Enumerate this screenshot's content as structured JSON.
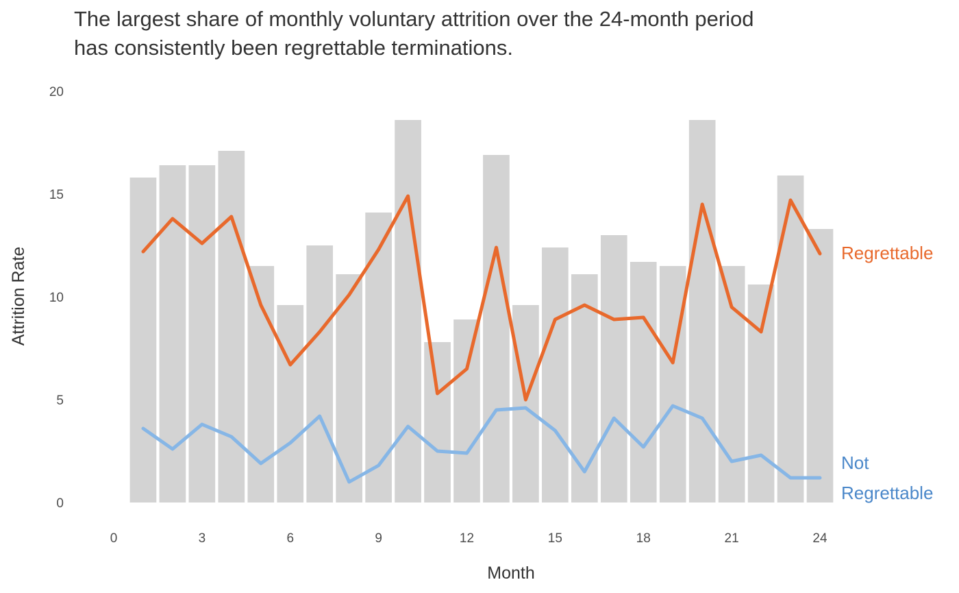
{
  "chart_data": {
    "type": "bar",
    "title_lines": [
      "The largest share of monthly voluntary attrition over the 24-month period",
      "has consistently been regrettable terminations."
    ],
    "xlabel": "Month",
    "ylabel": "Attrition Rate",
    "xlim": [
      0,
      24
    ],
    "ylim": [
      0,
      20
    ],
    "xticks": [
      0,
      3,
      6,
      9,
      12,
      15,
      18,
      21,
      24
    ],
    "yticks": [
      0,
      5,
      10,
      15,
      20
    ],
    "grid": false,
    "x": [
      1,
      2,
      3,
      4,
      5,
      6,
      7,
      8,
      9,
      10,
      11,
      12,
      13,
      14,
      15,
      16,
      17,
      18,
      19,
      20,
      21,
      22,
      23,
      24
    ],
    "total": [
      15.8,
      16.4,
      16.4,
      17.1,
      11.5,
      9.6,
      12.5,
      11.1,
      14.1,
      18.6,
      7.8,
      8.9,
      16.9,
      9.6,
      12.4,
      11.1,
      13.0,
      11.7,
      11.5,
      18.6,
      11.5,
      10.6,
      15.9,
      13.3
    ],
    "bar_color": "#d3d3d3",
    "series": [
      {
        "name": "Regrettable",
        "color": "#e8692c",
        "values": [
          12.2,
          13.8,
          12.6,
          13.9,
          9.6,
          6.7,
          8.3,
          10.1,
          12.3,
          14.9,
          5.3,
          6.5,
          12.4,
          5.0,
          8.9,
          9.6,
          8.9,
          9.0,
          6.8,
          14.5,
          9.5,
          8.3,
          14.7,
          12.1
        ]
      },
      {
        "name": "Not Regrettable",
        "label_lines": [
          "Not",
          "Regrettable"
        ],
        "color": "#86b6e6",
        "label_color": "#4a87c9",
        "values": [
          3.6,
          2.6,
          3.8,
          3.2,
          1.9,
          2.9,
          4.2,
          1.0,
          1.8,
          3.7,
          2.5,
          2.4,
          4.5,
          4.6,
          3.5,
          1.5,
          4.1,
          2.7,
          4.7,
          4.1,
          2.0,
          2.3,
          1.2,
          1.2
        ]
      }
    ]
  }
}
